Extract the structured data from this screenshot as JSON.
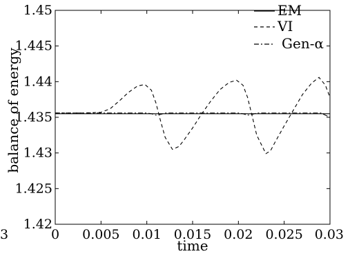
{
  "chart_data": {
    "type": "line",
    "title": "",
    "xlabel": "time",
    "ylabel": "balance of energy",
    "xlim": [
      0,
      0.03
    ],
    "ylim": [
      1.42,
      1.45
    ],
    "grid": false,
    "legend_position": "top-right",
    "x_ticks": [
      {
        "value": 0,
        "label": "0"
      },
      {
        "value": 0.005,
        "label": "0.005"
      },
      {
        "value": 0.01,
        "label": "0.01"
      },
      {
        "value": 0.015,
        "label": "0.015"
      },
      {
        "value": 0.02,
        "label": "0.02"
      },
      {
        "value": 0.025,
        "label": "0.025"
      },
      {
        "value": 0.03,
        "label": "0.03"
      }
    ],
    "y_ticks": [
      {
        "value": 1.42,
        "label": "1.42"
      },
      {
        "value": 1.425,
        "label": "1.425"
      },
      {
        "value": 1.43,
        "label": "1.43"
      },
      {
        "value": 1.435,
        "label": "1.435"
      },
      {
        "value": 1.44,
        "label": "1.44"
      },
      {
        "value": 1.445,
        "label": "1.445"
      },
      {
        "value": 1.45,
        "label": "1.45"
      }
    ],
    "stray_label": "3",
    "series": [
      {
        "name": "EM",
        "style": "solid",
        "color": "#000000",
        "x": [
          0,
          0.005,
          0.01,
          0.015,
          0.02,
          0.025,
          0.03
        ],
        "y": [
          1.4355,
          1.4355,
          1.4355,
          1.4355,
          1.4355,
          1.4355,
          1.4355
        ]
      },
      {
        "name": "VI",
        "style": "dashed",
        "color": "#000000",
        "x": [
          0,
          0.003,
          0.005,
          0.006,
          0.007,
          0.008,
          0.009,
          0.0098,
          0.0105,
          0.011,
          0.0115,
          0.012,
          0.0128,
          0.0135,
          0.014,
          0.015,
          0.016,
          0.017,
          0.018,
          0.019,
          0.0198,
          0.0205,
          0.021,
          0.0215,
          0.022,
          0.023,
          0.0235,
          0.024,
          0.025,
          0.026,
          0.027,
          0.028,
          0.0288,
          0.0295,
          0.03
        ],
        "y": [
          1.4356,
          1.4356,
          1.4357,
          1.4362,
          1.4373,
          1.4385,
          1.4394,
          1.4396,
          1.4388,
          1.437,
          1.4345,
          1.4322,
          1.4305,
          1.4309,
          1.4317,
          1.4335,
          1.4355,
          1.4373,
          1.4389,
          1.4399,
          1.4402,
          1.4395,
          1.4378,
          1.4352,
          1.4325,
          1.4299,
          1.4303,
          1.4315,
          1.4338,
          1.436,
          1.4382,
          1.4398,
          1.4406,
          1.4395,
          1.4378
        ]
      },
      {
        "name": "Gen-α",
        "style": "dashdot",
        "color": "#000000",
        "x": [
          0,
          0.005,
          0.01,
          0.0105,
          0.011,
          0.0115,
          0.012,
          0.015,
          0.02,
          0.0205,
          0.021,
          0.0215,
          0.022,
          0.025,
          0.029,
          0.0295,
          0.03
        ],
        "y": [
          1.4356,
          1.4356,
          1.4356,
          1.4355,
          1.4353,
          1.4354,
          1.4356,
          1.4356,
          1.4356,
          1.4355,
          1.4353,
          1.4354,
          1.4356,
          1.4356,
          1.4356,
          1.4353,
          1.435
        ]
      }
    ]
  }
}
